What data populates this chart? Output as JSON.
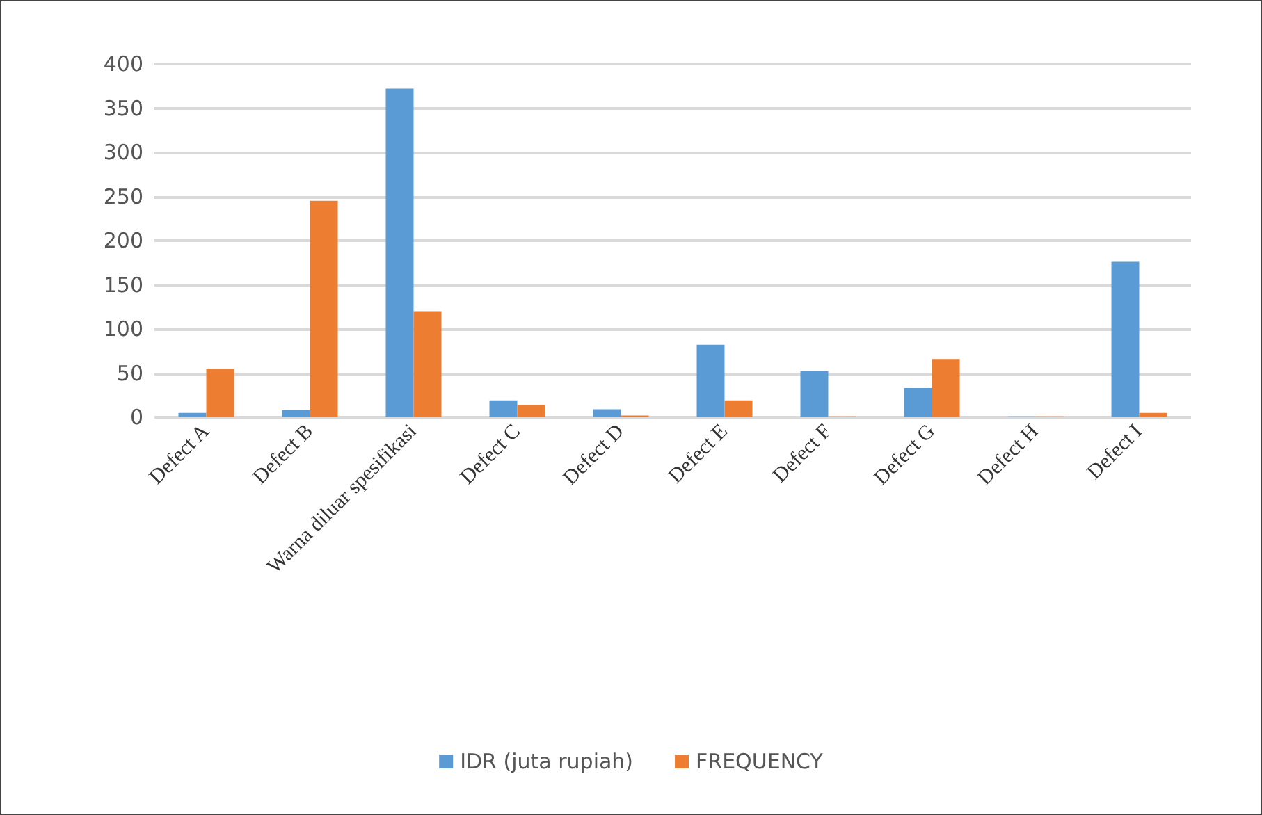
{
  "chart_data": {
    "type": "bar",
    "categories": [
      "Defect A",
      "Defect B",
      "Warna diluar spesifikasi",
      "Defect C",
      "Defect D",
      "Defect E",
      "Defect F",
      "Defect G",
      "Defect H",
      "Defect I"
    ],
    "series": [
      {
        "name": "IDR (juta rupiah)",
        "color": "#5b9bd5",
        "values": [
          5,
          8,
          372,
          19,
          9,
          82,
          52,
          33,
          1,
          176
        ]
      },
      {
        "name": "FREQUENCY",
        "color": "#ed7d31",
        "values": [
          55,
          245,
          120,
          14,
          2,
          19,
          1,
          66,
          1,
          5
        ]
      }
    ],
    "ylim": [
      0,
      400
    ],
    "yticks": [
      0,
      50,
      100,
      150,
      200,
      250,
      300,
      350,
      400
    ],
    "grid": "y",
    "legend": "bottom"
  }
}
